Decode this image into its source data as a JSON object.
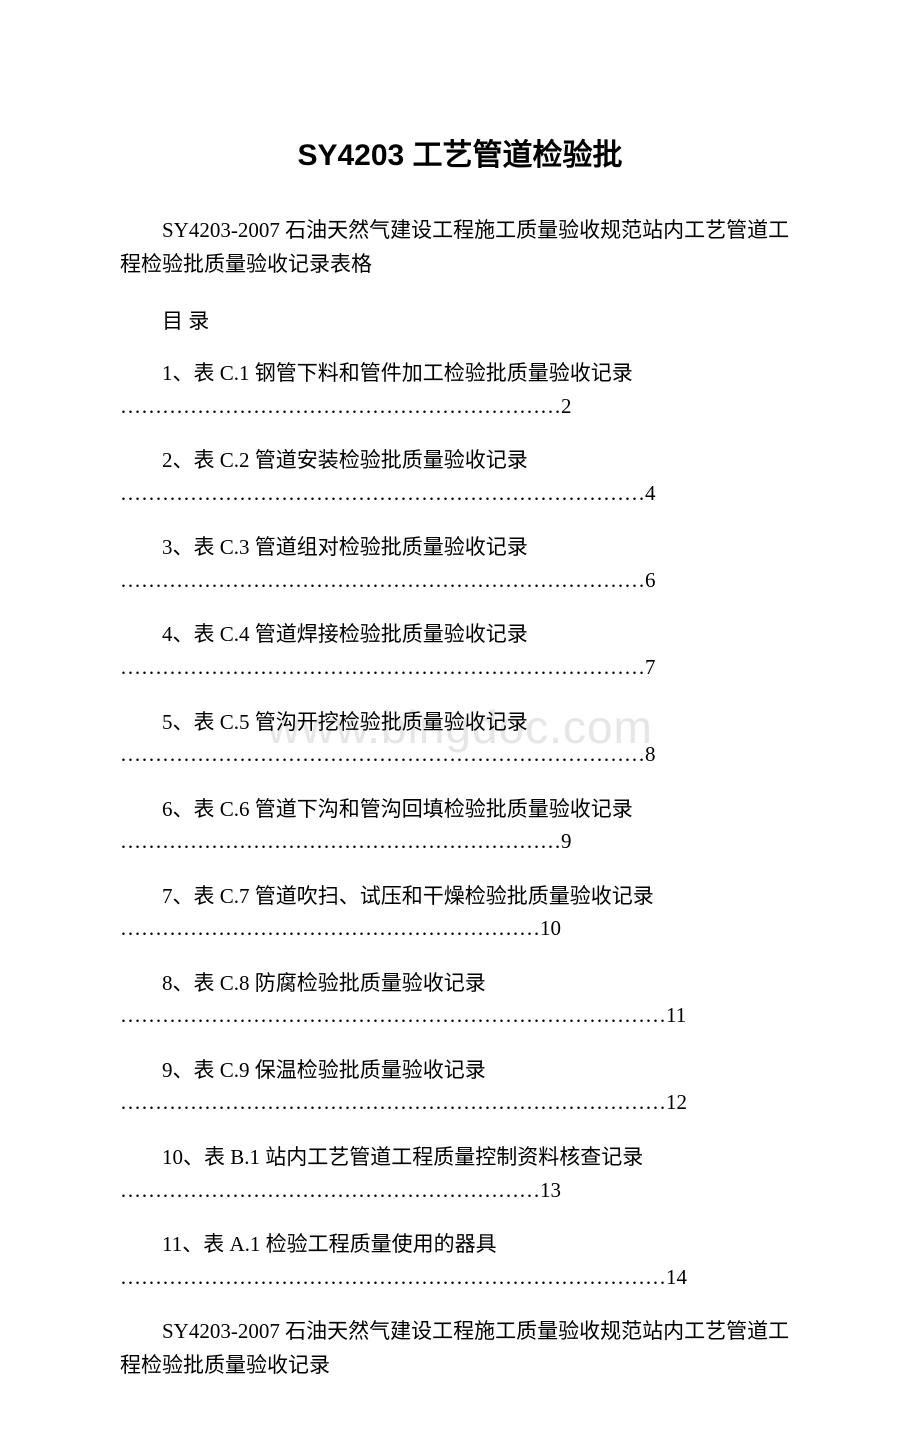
{
  "page": {
    "background_color": "#ffffff",
    "text_color": "#000000",
    "watermark_color": "#e6e6e6",
    "title_fontsize": 30,
    "body_fontsize": 21
  },
  "watermark": {
    "text": "www.bingdoc.com"
  },
  "title": "SY4203 工艺管道检验批",
  "subtitle": "SY4203-2007 石油天然气建设工程施工质量验收规范站内工艺管道工程检验批质量验收记录表格",
  "toc_heading": "目 录",
  "toc": [
    {
      "label": "1、表 C.1 钢管下料和管件加工检验批质量验收记录",
      "leader": "………………………………………………………2"
    },
    {
      "label": "2、表 C.2  管道安装检验批质量验收记录",
      "leader": "…………………………………………………………………4"
    },
    {
      "label": "3、表 C.3 管道组对检验批质量验收记录",
      "leader": "…………………………………………………………………6"
    },
    {
      "label": "4、表 C.4 管道焊接检验批质量验收记录",
      "leader": "…………………………………………………………………7"
    },
    {
      "label": "5、表 C.5 管沟开挖检验批质量验收记录",
      "leader": "…………………………………………………………………8"
    },
    {
      "label": "6、表 C.6  管道下沟和管沟回填检验批质量验收记录",
      "leader": "………………………………………………………9"
    },
    {
      "label": "7、表 C.7 管道吹扫、试压和干燥检验批质量验收记录",
      "leader": "……………………………………………………10"
    },
    {
      "label": "8、表 C.8 防腐检验批质量验收记录",
      "leader": "……………………………………………………………………11"
    },
    {
      "label": "9、表 C.9 保温检验批质量验收记录",
      "leader": "……………………………………………………………………12"
    },
    {
      "label": "10、表 B.1  站内工艺管道工程质量控制资料核查记录",
      "leader": "……………………………………………………13"
    },
    {
      "label": "11、表 A.1 检验工程质量使用的器具",
      "leader": "……………………………………………………………………14"
    }
  ],
  "footer": "SY4203-2007 石油天然气建设工程施工质量验收规范站内工艺管道工程检验批质量验收记录"
}
